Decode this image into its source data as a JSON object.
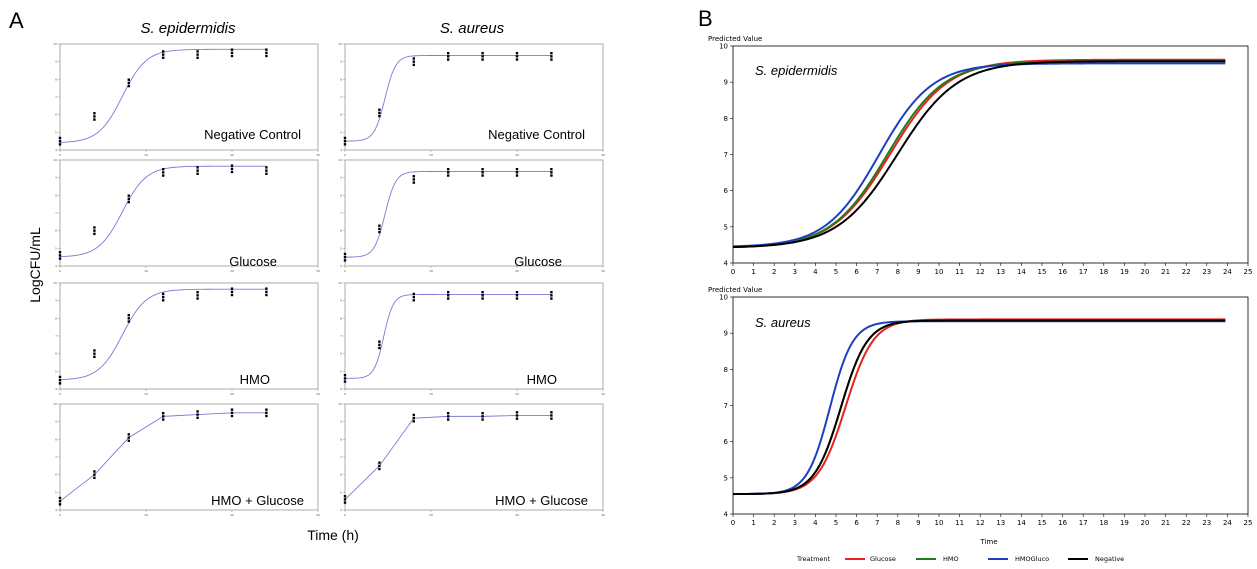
{
  "figure": {
    "panel_a_letter": "A",
    "panel_b_letter": "B"
  },
  "panel_a": {
    "col_titles": [
      "S. epidermidis",
      "S. aureus"
    ],
    "row_labels": [
      "Negative Control",
      "Glucose",
      "HMO",
      "HMO + Glucose"
    ],
    "ylabel": "LogCFU/mL",
    "xlabel": "Time (h)",
    "line_color": "#7a7ad6",
    "point_color": "#000000"
  },
  "panel_b": {
    "ylabel": "Predicted Value",
    "xlabel": "Time",
    "species": [
      "S. epidermidis",
      "S. aureus"
    ],
    "legend_title": "Treatment",
    "legend": [
      {
        "name": "Glucose",
        "color": "#e8221c"
      },
      {
        "name": "HMO",
        "color": "#1f7a1f"
      },
      {
        "name": "HMOGluco",
        "color": "#1f3fbf"
      },
      {
        "name": "Negative",
        "color": "#000000"
      }
    ]
  },
  "chart_data": [
    {
      "type": "scatter",
      "panel": "A",
      "species": "S. epidermidis",
      "condition": "Negative Control",
      "x": [
        0,
        4,
        8,
        12,
        16,
        20,
        24
      ],
      "y": [
        4.5,
        5.9,
        7.8,
        9.4,
        9.4,
        9.5,
        9.5
      ],
      "fit": {
        "y0": 4.4,
        "ymax": 9.7,
        "rate": 0.38,
        "lag": 2
      },
      "xlim": [
        0,
        30
      ],
      "ylim": [
        4,
        10
      ]
    },
    {
      "type": "scatter",
      "panel": "A",
      "species": "S. aureus",
      "condition": "Negative Control",
      "x": [
        0,
        4,
        8,
        12,
        16,
        20,
        24
      ],
      "y": [
        4.5,
        6.1,
        9.0,
        9.3,
        9.3,
        9.3,
        9.3
      ],
      "fit": {
        "y0": 4.5,
        "ymax": 9.35,
        "rate": 0.85,
        "lag": 2.3
      },
      "xlim": [
        0,
        30
      ],
      "ylim": [
        4,
        10
      ]
    },
    {
      "type": "scatter",
      "panel": "A",
      "species": "S. epidermidis",
      "condition": "Glucose",
      "x": [
        0,
        4,
        8,
        12,
        16,
        20,
        24
      ],
      "y": [
        4.6,
        6.0,
        7.8,
        9.3,
        9.4,
        9.5,
        9.4
      ],
      "fit": {
        "y0": 4.5,
        "ymax": 9.65,
        "rate": 0.38,
        "lag": 2
      },
      "xlim": [
        0,
        30
      ],
      "ylim": [
        4,
        10
      ]
    },
    {
      "type": "scatter",
      "panel": "A",
      "species": "S. aureus",
      "condition": "Glucose",
      "x": [
        0,
        4,
        8,
        12,
        16,
        20,
        24
      ],
      "y": [
        4.5,
        6.1,
        8.9,
        9.3,
        9.3,
        9.3,
        9.3
      ],
      "fit": {
        "y0": 4.5,
        "ymax": 9.35,
        "rate": 0.85,
        "lag": 2.3
      },
      "xlim": [
        0,
        30
      ],
      "ylim": [
        4,
        10
      ]
    },
    {
      "type": "scatter",
      "panel": "A",
      "species": "S. epidermidis",
      "condition": "HMO",
      "x": [
        0,
        4,
        8,
        12,
        16,
        20,
        24
      ],
      "y": [
        4.5,
        6.0,
        8.0,
        9.2,
        9.3,
        9.5,
        9.5
      ],
      "fit": {
        "y0": 4.5,
        "ymax": 9.65,
        "rate": 0.38,
        "lag": 2
      },
      "xlim": [
        0,
        30
      ],
      "ylim": [
        4,
        10
      ]
    },
    {
      "type": "scatter",
      "panel": "A",
      "species": "S. aureus",
      "condition": "HMO",
      "x": [
        0,
        4,
        8,
        12,
        16,
        20,
        24
      ],
      "y": [
        4.6,
        6.5,
        9.2,
        9.3,
        9.3,
        9.3,
        9.3
      ],
      "fit": {
        "y0": 4.6,
        "ymax": 9.35,
        "rate": 0.95,
        "lag": 2.4
      },
      "xlim": [
        0,
        30
      ],
      "ylim": [
        4,
        10
      ]
    },
    {
      "type": "line",
      "panel": "A",
      "species": "S. epidermidis",
      "condition": "HMO + Glucose",
      "x": [
        0,
        4,
        8,
        12,
        16,
        20,
        24
      ],
      "y": [
        4.5,
        6.0,
        8.1,
        9.3,
        9.4,
        9.5,
        9.5
      ],
      "xlim": [
        0,
        30
      ],
      "ylim": [
        4,
        10
      ]
    },
    {
      "type": "line",
      "panel": "A",
      "species": "S. aureus",
      "condition": "HMO + Glucose",
      "x": [
        0,
        4,
        8,
        12,
        16,
        20,
        24
      ],
      "y": [
        4.6,
        6.5,
        9.2,
        9.3,
        9.3,
        9.35,
        9.35
      ],
      "xlim": [
        0,
        30
      ],
      "ylim": [
        4,
        10
      ]
    },
    {
      "type": "line",
      "panel": "B",
      "species": "S. epidermidis",
      "xlabel": "Time",
      "ylabel": "Predicted Value",
      "xlim": [
        0,
        25
      ],
      "ylim": [
        4,
        10
      ],
      "series": [
        {
          "name": "Glucose",
          "y0": 4.42,
          "ymax": 9.62,
          "rate": 0.375,
          "lag": 2.3
        },
        {
          "name": "HMO",
          "y0": 4.42,
          "ymax": 9.58,
          "rate": 0.385,
          "lag": 2.3
        },
        {
          "name": "HMOGluco",
          "y0": 4.44,
          "ymax": 9.52,
          "rate": 0.41,
          "lag": 2.2
        },
        {
          "name": "Negative",
          "y0": 4.42,
          "ymax": 9.58,
          "rate": 0.365,
          "lag": 2.5
        }
      ]
    },
    {
      "type": "line",
      "panel": "B",
      "species": "S. aureus",
      "xlabel": "Time",
      "ylabel": "Predicted Value",
      "xlim": [
        0,
        25
      ],
      "ylim": [
        4,
        10
      ],
      "series": [
        {
          "name": "Glucose",
          "y0": 4.55,
          "ymax": 9.38,
          "rate": 0.78,
          "lag": 2.9
        },
        {
          "name": "HMO",
          "y0": 4.55,
          "ymax": 9.35,
          "rate": 0.82,
          "lag": 2.8
        },
        {
          "name": "HMOGluco",
          "y0": 4.55,
          "ymax": 9.33,
          "rate": 0.95,
          "lag": 2.6
        },
        {
          "name": "Negative",
          "y0": 4.55,
          "ymax": 9.35,
          "rate": 0.82,
          "lag": 2.8
        }
      ]
    }
  ]
}
